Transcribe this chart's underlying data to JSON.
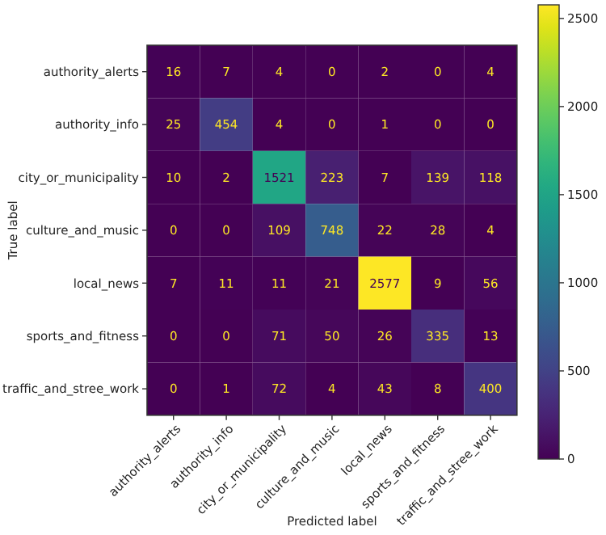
{
  "chart_data": {
    "type": "heatmap",
    "xlabel": "Predicted label",
    "ylabel": "True label",
    "categories": [
      "authority_alerts",
      "authority_info",
      "city_or_municipality",
      "culture_and_music",
      "local_news",
      "sports_and_fitness",
      "traffic_and_stree_work"
    ],
    "y_categories": [
      "authority_alerts",
      "authority_info",
      "city_or_municipality",
      "culture_and_music",
      "local_news",
      "sports_and_fitness",
      "traffic_and_stree_work"
    ],
    "cells": [
      [
        16,
        7,
        4,
        0,
        2,
        0,
        4
      ],
      [
        25,
        454,
        4,
        0,
        1,
        0,
        0
      ],
      [
        10,
        2,
        1521,
        223,
        7,
        139,
        118
      ],
      [
        0,
        0,
        109,
        748,
        22,
        28,
        4
      ],
      [
        7,
        11,
        11,
        21,
        2577,
        9,
        56
      ],
      [
        0,
        0,
        71,
        50,
        26,
        335,
        13
      ],
      [
        0,
        1,
        72,
        4,
        43,
        8,
        400
      ]
    ],
    "data_labels": true,
    "clim": [
      0,
      2577
    ],
    "cticks": [
      0,
      500,
      1000,
      1500,
      2000,
      2500
    ]
  }
}
